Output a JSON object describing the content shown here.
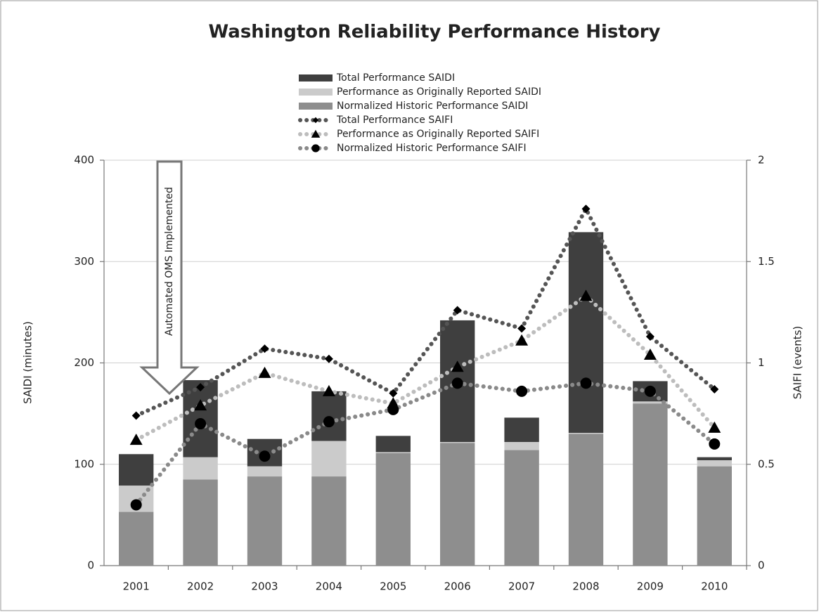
{
  "chart_data": {
    "type": "bar",
    "title": "Washington Reliability Performance History",
    "y_label": "SAIDI (minutes)",
    "y2_label": "SAIFI (events)",
    "annotation": "Automated OMS Implemented",
    "categories": [
      "2001",
      "2002",
      "2003",
      "2004",
      "2005",
      "2006",
      "2007",
      "2008",
      "2009",
      "2010"
    ],
    "ylim": [
      0,
      400
    ],
    "yticks": [
      0,
      100,
      200,
      300,
      400
    ],
    "y2lim": [
      0,
      2
    ],
    "y2ticks": [
      0,
      0.5,
      1,
      1.5,
      2
    ],
    "grid": true,
    "stacked": true,
    "marker_color": "#000000",
    "series": [
      {
        "name": "Total Performance SAIDI",
        "type": "bar",
        "color": "#3f3f3f",
        "values": [
          31,
          76,
          27,
          49,
          16,
          120,
          24,
          198,
          20,
          3
        ]
      },
      {
        "name": "Performance as Originally Reported SAIDI",
        "type": "bar",
        "color": "#cbcbcb",
        "values": [
          26,
          22,
          10,
          35,
          1,
          1,
          8,
          1,
          2,
          6
        ]
      },
      {
        "name": "Normalized Historic Performance SAIDI",
        "type": "bar",
        "color": "#8e8e8e",
        "values": [
          53,
          85,
          88,
          88,
          111,
          121,
          114,
          130,
          160,
          98
        ]
      },
      {
        "name": "Total Performance SAIFI",
        "type": "line",
        "axis": "y2",
        "marker": "diamond",
        "color": "#555555",
        "values": [
          0.74,
          0.88,
          1.07,
          1.02,
          0.85,
          1.26,
          1.17,
          1.76,
          1.13,
          0.87
        ]
      },
      {
        "name": "Performance as Originally Reported SAIFI",
        "type": "line",
        "axis": "y2",
        "marker": "triangle",
        "color": "#bdbdbd",
        "values": [
          0.62,
          0.79,
          0.95,
          0.86,
          0.8,
          0.98,
          1.11,
          1.33,
          1.04,
          0.68
        ]
      },
      {
        "name": "Normalized Historic Performance SAIFI",
        "type": "line",
        "axis": "y2",
        "marker": "circle",
        "color": "#8a8a8a",
        "values": [
          0.3,
          0.7,
          0.54,
          0.71,
          0.77,
          0.9,
          0.86,
          0.9,
          0.86,
          0.6
        ]
      }
    ]
  }
}
